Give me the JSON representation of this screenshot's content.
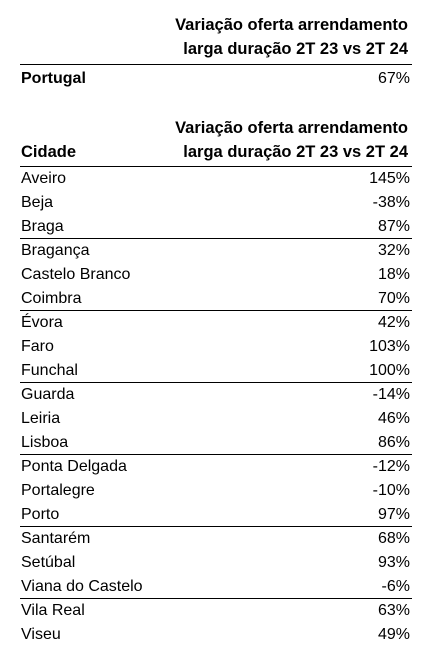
{
  "national_table": {
    "header_line1": "Variação oferta arrendamento",
    "header_line2": "larga duração 2T 23 vs 2T 24",
    "row_label": "Portugal",
    "row_value": "67%"
  },
  "city_table": {
    "header_city": "Cidade",
    "header_line1": "Variação oferta arrendamento",
    "header_line2": "larga duração 2T 23 vs 2T 24",
    "rows": [
      {
        "city": "Aveiro",
        "value": "145%"
      },
      {
        "city": "Beja",
        "value": "-38%"
      },
      {
        "city": "Braga",
        "value": "87%"
      },
      {
        "city": "Bragança",
        "value": "32%"
      },
      {
        "city": "Castelo Branco",
        "value": "18%"
      },
      {
        "city": "Coimbra",
        "value": "70%"
      },
      {
        "city": "Évora",
        "value": "42%"
      },
      {
        "city": "Faro",
        "value": "103%"
      },
      {
        "city": "Funchal",
        "value": "100%"
      },
      {
        "city": "Guarda",
        "value": "-14%"
      },
      {
        "city": "Leiria",
        "value": "46%"
      },
      {
        "city": "Lisboa",
        "value": "86%"
      },
      {
        "city": "Ponta Delgada",
        "value": "-12%"
      },
      {
        "city": "Portalegre",
        "value": "-10%"
      },
      {
        "city": "Porto",
        "value": "97%"
      },
      {
        "city": "Santarém",
        "value": "68%"
      },
      {
        "city": "Setúbal",
        "value": "93%"
      },
      {
        "city": "Viana do Castelo",
        "value": "-6%"
      },
      {
        "city": "Vila Real",
        "value": "63%"
      },
      {
        "city": "Viseu",
        "value": "49%"
      }
    ]
  }
}
